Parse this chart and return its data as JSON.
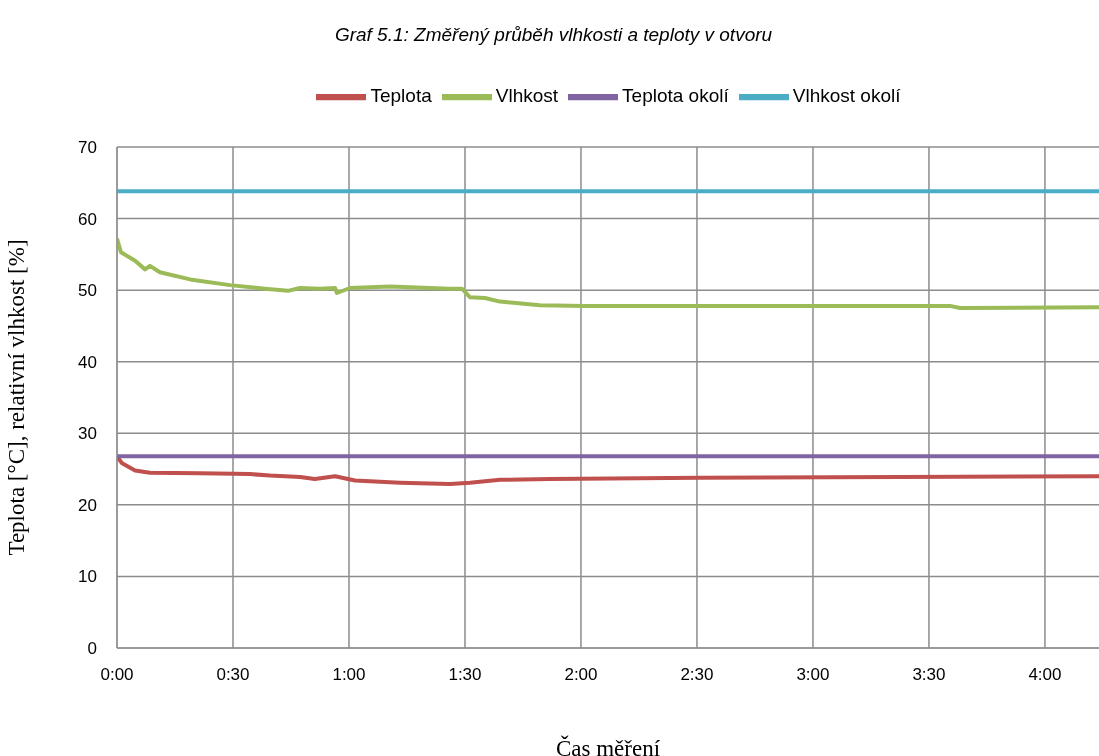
{
  "chart_data": {
    "type": "line",
    "title": "Graf 5.1: Změřený průběh vlhkosti a teploty v otvoru",
    "xlabel": "Čas měření",
    "ylabel": "Teplota [°C], relativní vlhkost [%]",
    "xlim": [
      0,
      4.233
    ],
    "xticks": [
      {
        "value": 0,
        "label": "0:00"
      },
      {
        "value": 0.5,
        "label": "0:30"
      },
      {
        "value": 1,
        "label": "1:00"
      },
      {
        "value": 1.5,
        "label": "1:30"
      },
      {
        "value": 2,
        "label": "2:00"
      },
      {
        "value": 2.5,
        "label": "2:30"
      },
      {
        "value": 3,
        "label": "3:00"
      },
      {
        "value": 3.5,
        "label": "3:30"
      },
      {
        "value": 4,
        "label": "4:00"
      }
    ],
    "ylim": [
      0,
      70
    ],
    "yticks": [
      0,
      10,
      20,
      30,
      40,
      50,
      60,
      70
    ],
    "grid": true,
    "legend": "top",
    "marker": "none",
    "line_style": "solid",
    "series": [
      {
        "name": "Teplota",
        "color": "#c0504d",
        "x": [
          0,
          0.022,
          0.078,
          0.142,
          0.358,
          0.573,
          0.659,
          0.789,
          0.853,
          0.94,
          1.026,
          1.22,
          1.435,
          1.522,
          1.651,
          1.866,
          2.513,
          3.375,
          4.233
        ],
        "values": [
          26.8,
          25.8,
          24.8,
          24.5,
          24.4,
          24.3,
          24.1,
          23.9,
          23.6,
          24.0,
          23.4,
          23.1,
          22.9,
          23.1,
          23.5,
          23.6,
          23.8,
          23.9,
          24.0
        ]
      },
      {
        "name": "Vlhkost",
        "color": "#9bbb59",
        "x": [
          0,
          0.017,
          0.078,
          0.121,
          0.142,
          0.185,
          0.315,
          0.487,
          0.638,
          0.737,
          0.789,
          0.875,
          0.94,
          0.948,
          1.004,
          1.177,
          1.435,
          1.487,
          1.522,
          1.586,
          1.651,
          1.823,
          2.017,
          2.513,
          3.59,
          3.634,
          4.233
        ],
        "values": [
          57.2,
          55.3,
          54.1,
          52.9,
          53.4,
          52.5,
          51.5,
          50.7,
          50.2,
          49.9,
          50.3,
          50.2,
          50.3,
          49.6,
          50.3,
          50.5,
          50.2,
          50.2,
          49.0,
          48.9,
          48.4,
          47.9,
          47.8,
          47.8,
          47.8,
          47.5,
          47.6
        ]
      },
      {
        "name": "Teplota okolí",
        "color": "#8064a2",
        "x": [
          0,
          4.233
        ],
        "values": [
          26.8,
          26.8
        ]
      },
      {
        "name": "Vlhkost okolí",
        "color": "#4bacc6",
        "x": [
          0,
          4.233
        ],
        "values": [
          63.8,
          63.8
        ]
      }
    ]
  }
}
